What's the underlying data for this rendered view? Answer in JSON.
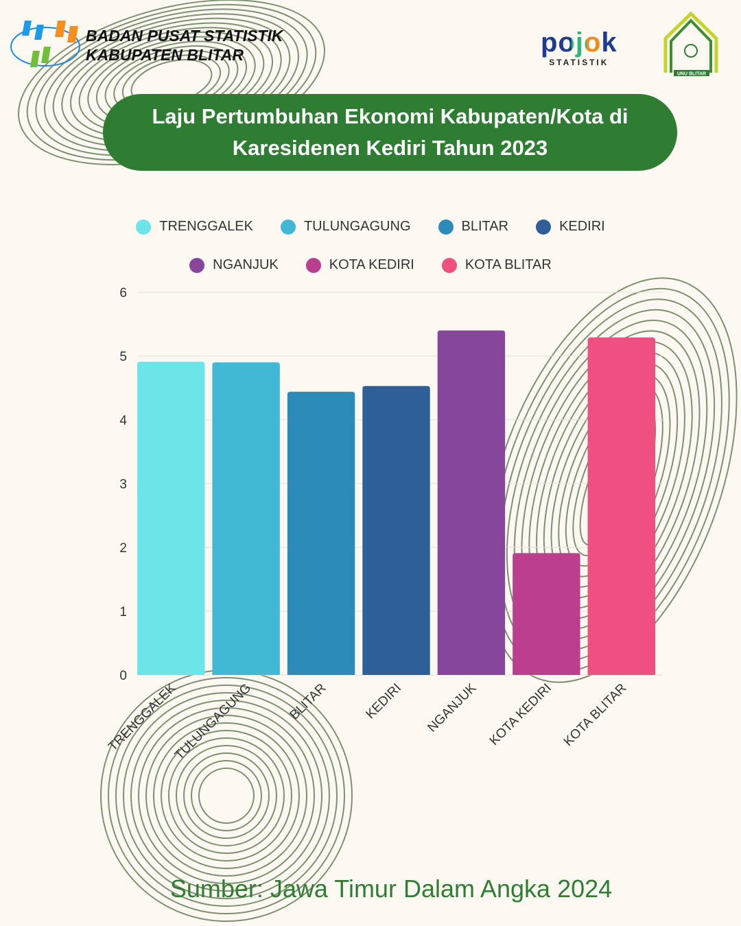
{
  "header": {
    "org_line1": "BADAN PUSAT STATISTIK",
    "org_line2": "KABUPATEN BLITAR",
    "partner_logo_text": "pojok",
    "partner_logo_sub": "STATISTIK",
    "unu_logo_text": "UNU BLITAR"
  },
  "title": {
    "line1": "Laju Pertumbuhan Ekonomi Kabupaten/Kota di",
    "line2": "Karesidenen Kediri Tahun 2023"
  },
  "colors": {
    "title_bg": "#2e7d32",
    "source_text": "#2e7d32"
  },
  "chart_data": {
    "type": "bar",
    "title": "",
    "xlabel": "",
    "ylabel": "",
    "ylim": [
      0,
      6
    ],
    "yticks": [
      0,
      1,
      2,
      3,
      4,
      5,
      6
    ],
    "grid": true,
    "legend_position": "top",
    "categories": [
      "TRENGGALEK",
      "TULUNGAGUNG",
      "BLITAR",
      "KEDIRI",
      "NGANJUK",
      "KOTA KEDIRI",
      "KOTA BLITAR"
    ],
    "values": [
      4.91,
      4.9,
      4.44,
      4.53,
      5.4,
      1.91,
      5.29
    ],
    "colors": [
      "#6ce5e8",
      "#41b8d5",
      "#2d8bba",
      "#2f5f98",
      "#86469c",
      "#bc3e8f",
      "#ef5081"
    ]
  },
  "footer": {
    "source": "Sumber: Jawa Timur Dalam Angka 2024"
  }
}
